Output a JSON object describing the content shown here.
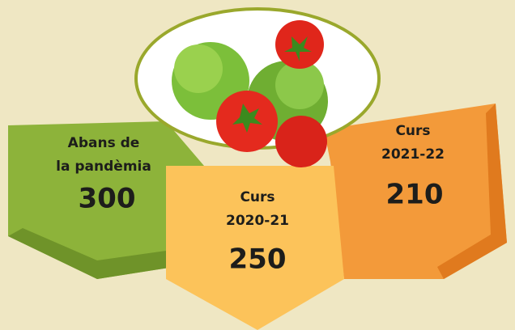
{
  "panels": [
    {
      "label": [
        "Abans de",
        "la pandèmia"
      ],
      "value": 300
    },
    {
      "label": [
        "Curs",
        "2020-21"
      ],
      "value": 250
    },
    {
      "label": [
        "Curs",
        "2021-22"
      ],
      "value": 210
    }
  ]
}
